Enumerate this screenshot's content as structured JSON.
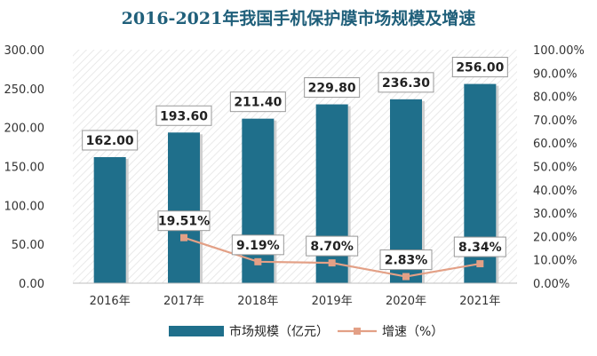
{
  "chart_data": {
    "type": "bar",
    "title": "2016-2021年我国手机保护膜市场规模及增速",
    "categories": [
      "2016年",
      "2017年",
      "2018年",
      "2019年",
      "2020年",
      "2021年"
    ],
    "series": [
      {
        "name": "市场规模（亿元）",
        "type": "bar",
        "axis": "left",
        "values": [
          162.0,
          193.6,
          211.4,
          229.8,
          236.3,
          256.0
        ],
        "labels": [
          "162.00",
          "193.60",
          "211.40",
          "229.80",
          "236.30",
          "256.00"
        ],
        "color": "#1f6f8b"
      },
      {
        "name": "增速（%）",
        "type": "line",
        "axis": "right",
        "values": [
          null,
          19.51,
          9.19,
          8.7,
          2.83,
          8.34
        ],
        "labels": [
          "",
          "19.51%",
          "9.19%",
          "8.70%",
          "2.83%",
          "8.34%"
        ],
        "color": "#e3a086"
      }
    ],
    "y_left": {
      "ylim": [
        0,
        300
      ],
      "ticks": [
        "0.00",
        "50.00",
        "100.00",
        "150.00",
        "200.00",
        "250.00",
        "300.00"
      ]
    },
    "y_right": {
      "ylim": [
        0,
        100
      ],
      "ticks": [
        "0.00%",
        "10.00%",
        "20.00%",
        "30.00%",
        "40.00%",
        "50.00%",
        "60.00%",
        "70.00%",
        "80.00%",
        "90.00%",
        "100.00%"
      ]
    },
    "legend_position": "bottom",
    "grid": false
  }
}
